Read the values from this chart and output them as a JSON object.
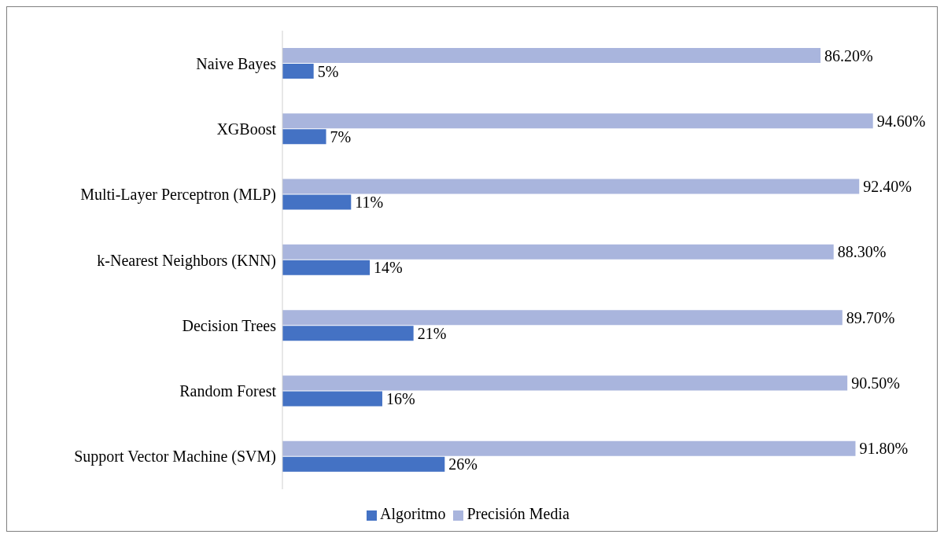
{
  "chart_data": {
    "type": "bar",
    "orientation": "horizontal",
    "categories": [
      "Naive Bayes",
      "XGBoost",
      "Multi-Layer Perceptron (MLP)",
      "k-Nearest Neighbors (KNN)",
      "Decision Trees",
      "Random Forest",
      "Support Vector Machine (SVM)"
    ],
    "series": [
      {
        "name": "Precisión Media",
        "color": "#a9b5dd",
        "values": [
          86.2,
          94.6,
          92.4,
          88.3,
          89.7,
          90.5,
          91.8
        ],
        "value_labels": [
          "86.20%",
          "94.60%",
          "92.40%",
          "88.30%",
          "89.70%",
          "90.50%",
          "91.80%"
        ]
      },
      {
        "name": "Algoritmo",
        "color": "#4472c4",
        "values": [
          5,
          7,
          11,
          14,
          21,
          16,
          26
        ],
        "value_labels": [
          "5%",
          "7%",
          "11%",
          "14%",
          "21%",
          "16%",
          "26%"
        ]
      }
    ],
    "legend": "bottom",
    "grid": false
  }
}
